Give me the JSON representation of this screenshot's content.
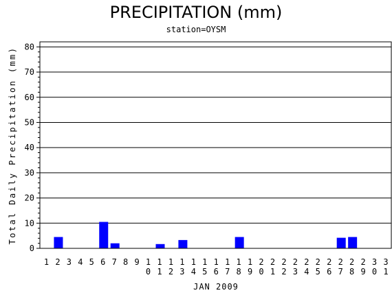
{
  "title": "PRECIPITATION (mm)",
  "subtitle": "station=OYSM",
  "chart_data": {
    "type": "bar",
    "xlabel": "JAN 2009",
    "ylabel": "Total Daily Precipitation (mm)",
    "ylim": [
      0,
      82
    ],
    "yticks": [
      0,
      10,
      20,
      30,
      40,
      50,
      60,
      70,
      80
    ],
    "grid": true,
    "bar_color": "#0000ff",
    "categories": [
      "1",
      "2",
      "3",
      "4",
      "5",
      "6",
      "7",
      "8",
      "9",
      "10",
      "11",
      "12",
      "13",
      "14",
      "15",
      "16",
      "17",
      "18",
      "19",
      "20",
      "21",
      "22",
      "23",
      "24",
      "25",
      "26",
      "27",
      "28",
      "29",
      "30",
      "31"
    ],
    "values": [
      0,
      4.5,
      0,
      0,
      0,
      10.5,
      2.0,
      0,
      0,
      0,
      1.7,
      0,
      3.3,
      0,
      0,
      0,
      0,
      4.5,
      0,
      0,
      0,
      0,
      0,
      0,
      0,
      0,
      4.2,
      4.5,
      0,
      0,
      0
    ]
  }
}
